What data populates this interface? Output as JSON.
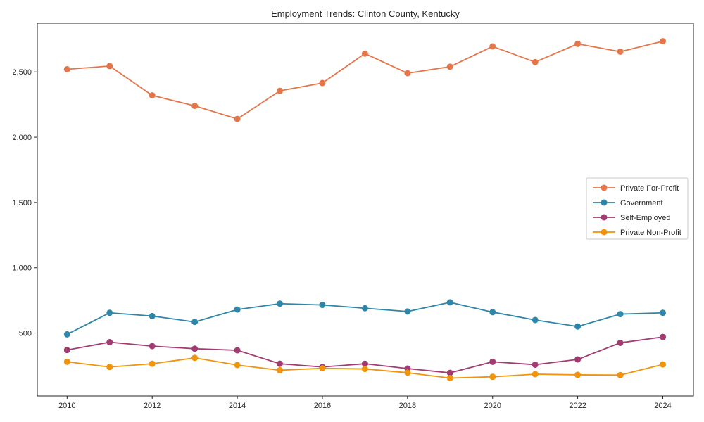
{
  "chart_data": {
    "type": "line",
    "title": "Employment Trends: Clinton County, Kentucky",
    "xlabel": "",
    "ylabel": "",
    "x": [
      2010,
      2011,
      2012,
      2013,
      2014,
      2015,
      2016,
      2017,
      2018,
      2019,
      2020,
      2021,
      2022,
      2023,
      2024
    ],
    "series": [
      {
        "name": "Private For-Profit",
        "color": "#E4764B",
        "values": [
          2520,
          2545,
          2320,
          2240,
          2140,
          2355,
          2415,
          2640,
          2490,
          2540,
          2695,
          2575,
          2715,
          2655,
          2735
        ]
      },
      {
        "name": "Government",
        "color": "#2E86A8",
        "values": [
          490,
          655,
          630,
          585,
          680,
          725,
          715,
          690,
          665,
          735,
          660,
          600,
          550,
          645,
          655
        ]
      },
      {
        "name": "Self-Employed",
        "color": "#A23B72",
        "values": [
          370,
          430,
          400,
          380,
          368,
          265,
          240,
          265,
          228,
          195,
          280,
          258,
          298,
          425,
          470
        ]
      },
      {
        "name": "Private Non-Profit",
        "color": "#F1930B",
        "values": [
          280,
          240,
          265,
          310,
          255,
          215,
          230,
          225,
          196,
          155,
          165,
          185,
          180,
          178,
          260
        ]
      }
    ],
    "xticks": [
      2010,
      2012,
      2014,
      2016,
      2018,
      2020,
      2022,
      2024
    ],
    "yticks": [
      500,
      1000,
      1500,
      2000,
      2500
    ],
    "ytick_labels": [
      "500",
      "1,000",
      "1,500",
      "2,000",
      "2,500"
    ],
    "xlim": [
      2009.3,
      2024.72
    ],
    "ylim": [
      18,
      2873
    ],
    "grid": false,
    "marker": "circle",
    "legend_position": "center right",
    "frame_color": "#262626",
    "legend_border_color": "#c8c8c8"
  }
}
